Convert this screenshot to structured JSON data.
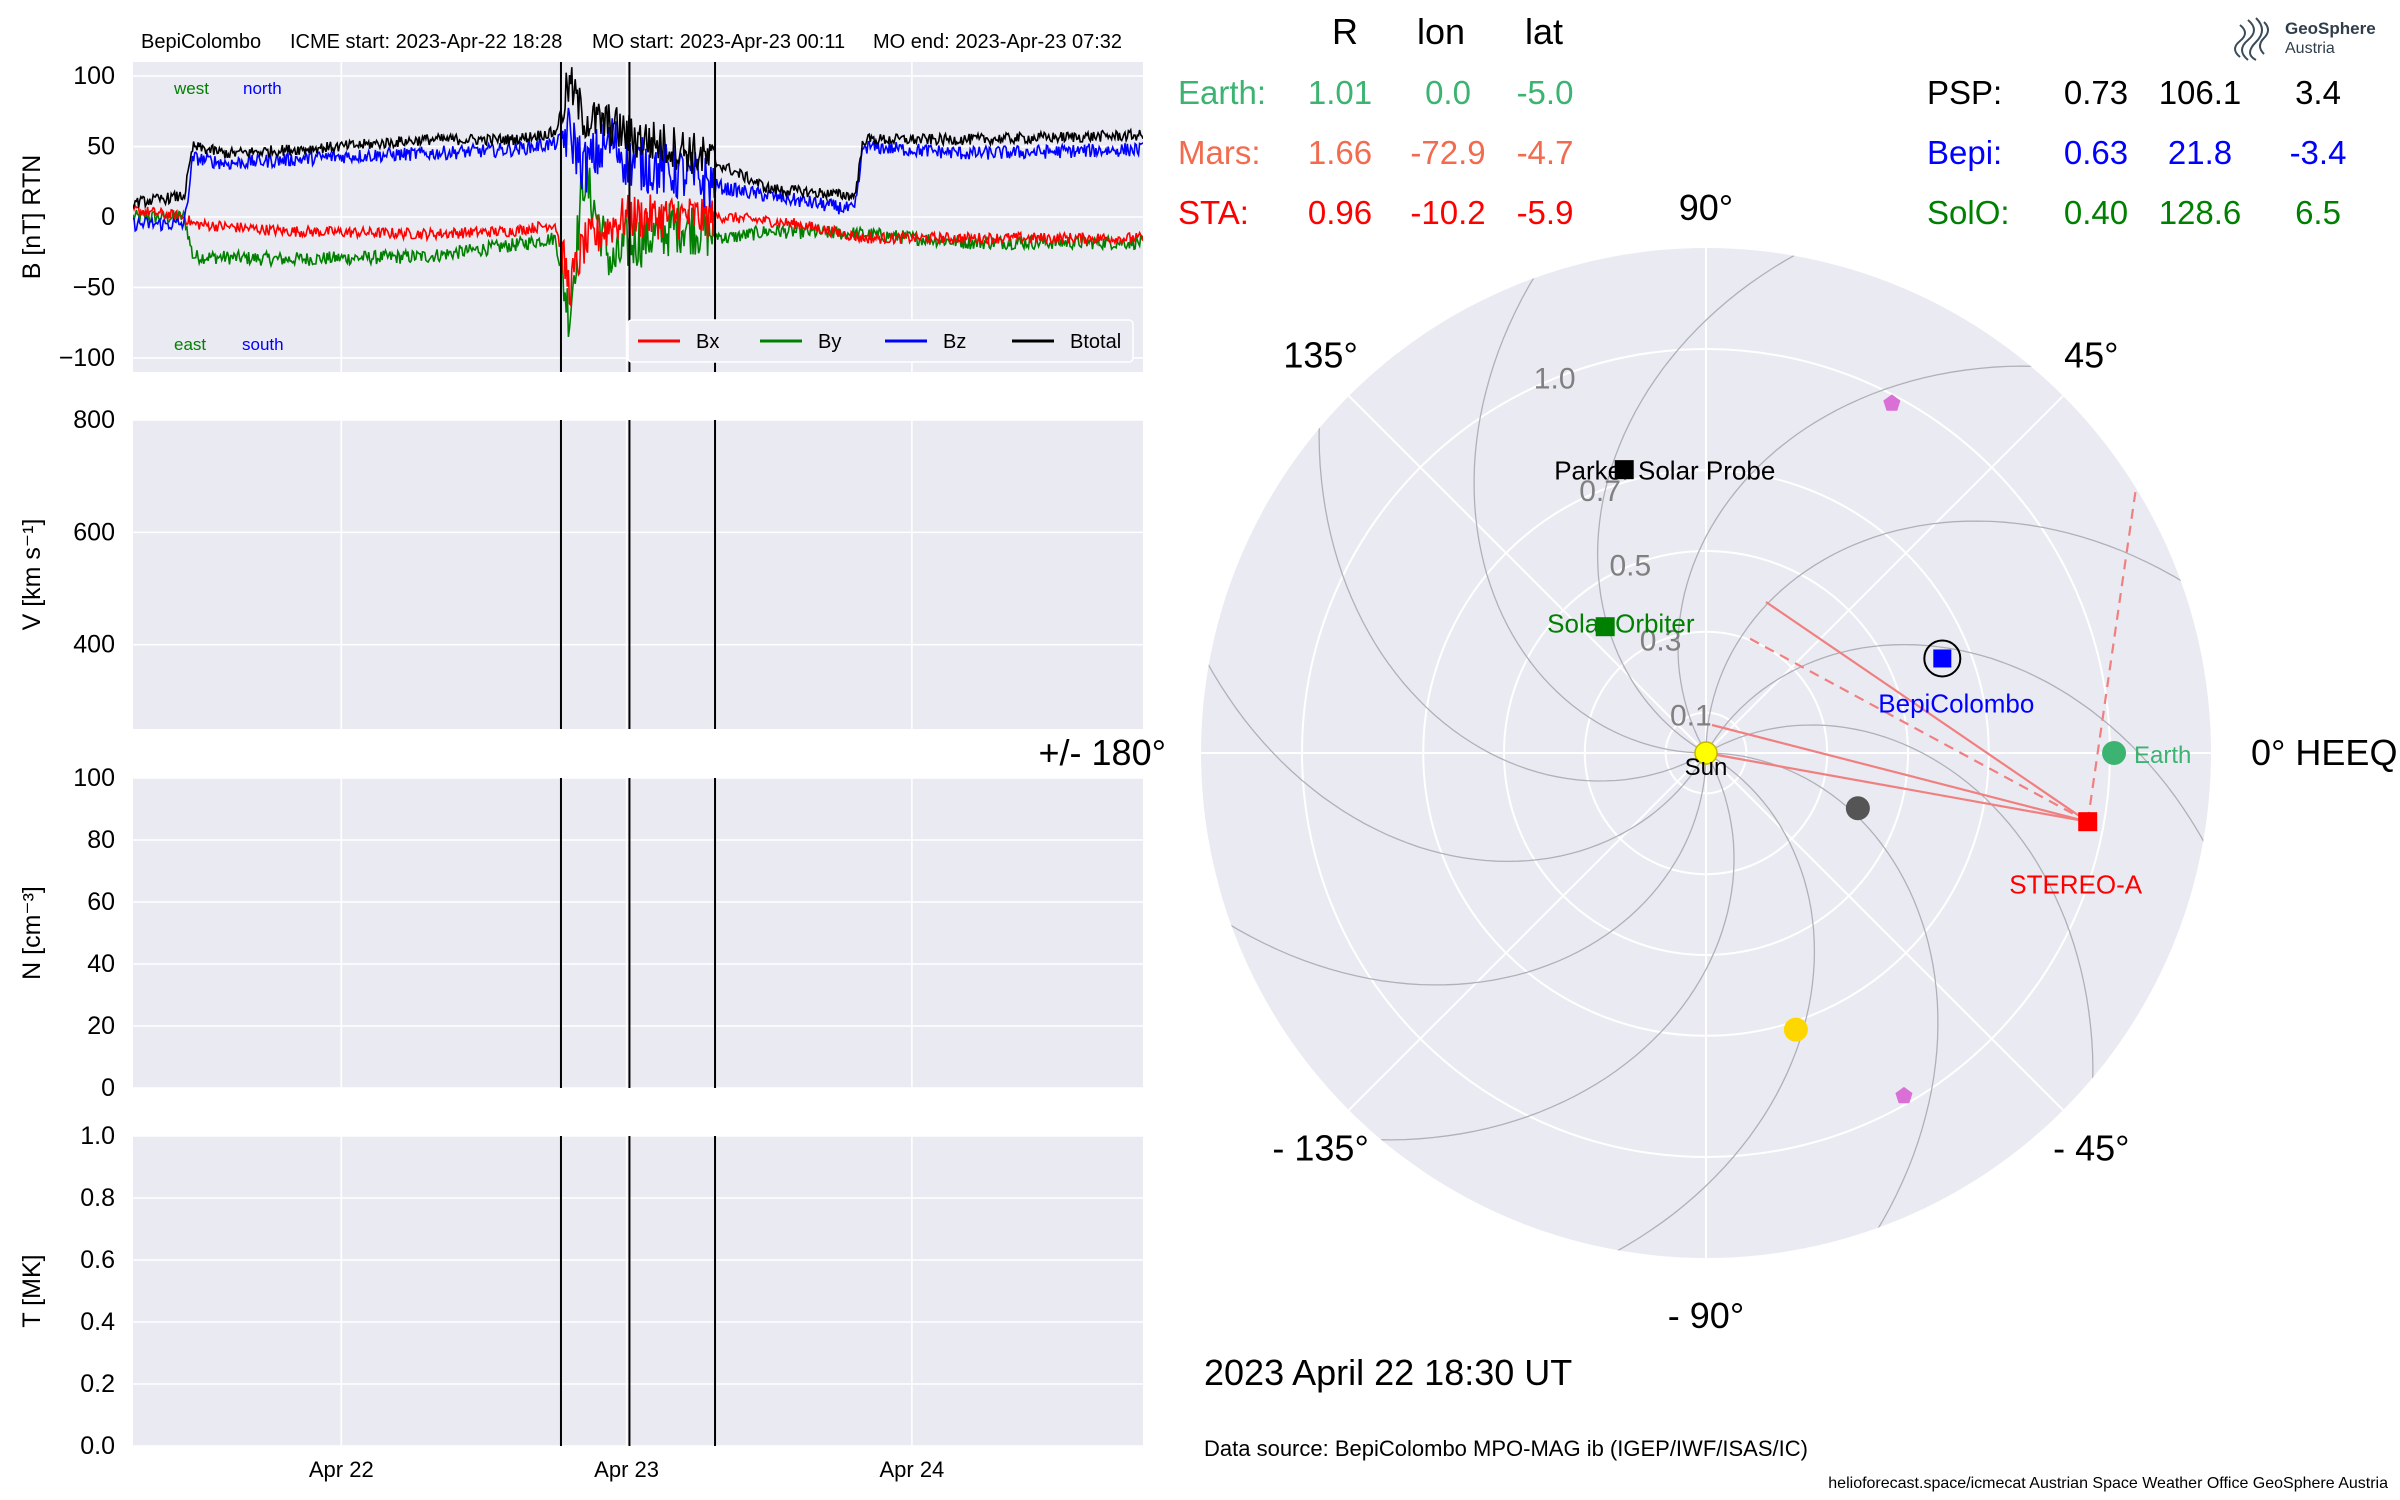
{
  "header": {
    "spacecraft": "BepiColombo",
    "icme_start": "ICME start: 2023-Apr-22 18:28",
    "mo_start": "MO start: 2023-Apr-23 00:11",
    "mo_end": "MO end: 2023-Apr-23 07:32"
  },
  "logo": {
    "line1": "GeoSphere",
    "line2": "Austria"
  },
  "positions_table": {
    "headers": [
      "R",
      "lon",
      "lat"
    ],
    "left_rows": [
      {
        "name": "Earth:",
        "R": "1.01",
        "lon": "0.0",
        "lat": "-5.0",
        "color": "#3cb371"
      },
      {
        "name": "Mars:",
        "R": "1.66",
        "lon": "-72.9",
        "lat": "-4.7",
        "color": "#f26b4f"
      },
      {
        "name": "STA:",
        "R": "0.96",
        "lon": "-10.2",
        "lat": "-5.9",
        "color": "#ff0000"
      }
    ],
    "right_rows": [
      {
        "name": "PSP:",
        "R": "0.73",
        "lon": "106.1",
        "lat": "3.4",
        "color": "#000000"
      },
      {
        "name": "Bepi:",
        "R": "0.63",
        "lon": "21.8",
        "lat": "-3.4",
        "color": "#0000ff"
      },
      {
        "name": "SolO:",
        "R": "0.40",
        "lon": "128.6",
        "lat": "6.5",
        "color": "#008000"
      }
    ]
  },
  "date_label": "2023 April 22  18:30 UT",
  "data_source": "Data source: BepiColombo MPO-MAG ib (IGEP/IWF/ISAS/IC)",
  "footer": "helioforecast.space/icmecat   Austrian Space Weather Office   GeoSphere Austria",
  "colors": {
    "axes_bg": "#eaeaf2",
    "grid": "#ffffff",
    "bx": "#ff0000",
    "by": "#008000",
    "bz": "#0000ff",
    "btotal": "#000000"
  },
  "chart_data": [
    {
      "type": "line",
      "panel": "magnetic field",
      "ylabel": "B [nT] RTN",
      "ylim": [
        -110,
        110
      ],
      "yticks": [
        "100",
        "50",
        "0",
        "−50",
        "−100"
      ],
      "ytick_values": [
        100,
        50,
        0,
        -50,
        -100
      ],
      "xlim_days": [
        21.27,
        24.81
      ],
      "xticks": [
        "Apr 22",
        "Apr 23",
        "Apr 24"
      ],
      "xtick_days": [
        22,
        23,
        24
      ],
      "event_lines_days": [
        22.77,
        23.01,
        23.31
      ],
      "annotations": {
        "west": "west",
        "north": "north",
        "east": "east",
        "south": "south"
      },
      "legend": [
        "Bx",
        "By",
        "Bz",
        "Btotal"
      ],
      "legend_location": "lower right",
      "series_keypoints": {
        "Btotal": [
          [
            21.27,
            10
          ],
          [
            21.45,
            15
          ],
          [
            21.48,
            50
          ],
          [
            21.6,
            45
          ],
          [
            22.0,
            50
          ],
          [
            22.3,
            55
          ],
          [
            22.6,
            55
          ],
          [
            22.75,
            60
          ],
          [
            22.8,
            95
          ],
          [
            22.85,
            70
          ],
          [
            22.95,
            65
          ],
          [
            23.0,
            58
          ],
          [
            23.2,
            48
          ],
          [
            23.35,
            35
          ],
          [
            23.5,
            20
          ],
          [
            23.8,
            15
          ],
          [
            23.83,
            55
          ],
          [
            24.2,
            55
          ],
          [
            24.81,
            58
          ]
        ],
        "Bz": [
          [
            21.27,
            -5
          ],
          [
            21.45,
            -5
          ],
          [
            21.48,
            42
          ],
          [
            21.6,
            38
          ],
          [
            22.0,
            43
          ],
          [
            22.3,
            45
          ],
          [
            22.6,
            48
          ],
          [
            22.75,
            52
          ],
          [
            22.8,
            60
          ],
          [
            22.85,
            35
          ],
          [
            22.95,
            55
          ],
          [
            23.0,
            40
          ],
          [
            23.2,
            30
          ],
          [
            23.35,
            20
          ],
          [
            23.5,
            15
          ],
          [
            23.8,
            5
          ],
          [
            23.83,
            50
          ],
          [
            24.2,
            45
          ],
          [
            24.81,
            48
          ]
        ],
        "Bx": [
          [
            21.27,
            5
          ],
          [
            21.45,
            0
          ],
          [
            21.48,
            -5
          ],
          [
            21.8,
            -10
          ],
          [
            22.3,
            -12
          ],
          [
            22.6,
            -10
          ],
          [
            22.75,
            -5
          ],
          [
            22.8,
            -50
          ],
          [
            22.85,
            -20
          ],
          [
            22.95,
            -5
          ],
          [
            23.0,
            0
          ],
          [
            23.2,
            0
          ],
          [
            23.35,
            0
          ],
          [
            23.6,
            -5
          ],
          [
            23.83,
            -15
          ],
          [
            24.2,
            -15
          ],
          [
            24.81,
            -15
          ]
        ],
        "By": [
          [
            21.27,
            0
          ],
          [
            21.45,
            0
          ],
          [
            21.48,
            -28
          ],
          [
            21.8,
            -30
          ],
          [
            22.3,
            -28
          ],
          [
            22.6,
            -20
          ],
          [
            22.75,
            -15
          ],
          [
            22.8,
            -70
          ],
          [
            22.85,
            30
          ],
          [
            22.95,
            -35
          ],
          [
            23.0,
            -20
          ],
          [
            23.2,
            -5
          ],
          [
            23.35,
            -15
          ],
          [
            23.5,
            -10
          ],
          [
            23.83,
            -12
          ],
          [
            24.2,
            -18
          ],
          [
            24.81,
            -18
          ]
        ]
      }
    },
    {
      "type": "line",
      "panel": "speed",
      "ylabel": "V [km s⁻¹]",
      "ylim": [
        250,
        800
      ],
      "yticks": [
        "800",
        "600",
        "400"
      ],
      "ytick_values": [
        800,
        600,
        400
      ],
      "xticks": [
        "Apr 22",
        "Apr 23",
        "Apr 24"
      ],
      "xtick_days": [
        22,
        23,
        24
      ],
      "event_lines_days": [
        22.77,
        23.01,
        23.31
      ]
    },
    {
      "type": "line",
      "panel": "density",
      "ylabel": "N [cm⁻³]",
      "ylim": [
        0,
        100
      ],
      "yticks": [
        "100",
        "80",
        "60",
        "40",
        "20",
        "0"
      ],
      "ytick_values": [
        100,
        80,
        60,
        40,
        20,
        0
      ],
      "xticks": [
        "Apr 22",
        "Apr 23",
        "Apr 24"
      ],
      "xtick_days": [
        22,
        23,
        24
      ],
      "event_lines_days": [
        22.77,
        23.01,
        23.31
      ]
    },
    {
      "type": "line",
      "panel": "temperature",
      "ylabel": "T [MK]",
      "ylim": [
        0,
        1
      ],
      "yticks": [
        "1.0",
        "0.8",
        "0.6",
        "0.4",
        "0.2",
        "0.0"
      ],
      "ytick_values": [
        1.0,
        0.8,
        0.6,
        0.4,
        0.2,
        0.0
      ],
      "xticks": [
        "Apr 22",
        "Apr 23",
        "Apr 24"
      ],
      "xtick_days": [
        22,
        23,
        24
      ],
      "event_lines_days": [
        22.77,
        23.01,
        23.31
      ]
    },
    {
      "type": "scatter",
      "panel": "polar position plot",
      "projection": "polar",
      "rmax_au": 1.25,
      "radial_tick_labels": [
        "0.1",
        "0.3",
        "0.5",
        "0.7",
        "1.0"
      ],
      "radial_tick_values": [
        0.1,
        0.3,
        0.5,
        0.7,
        1.0
      ],
      "angle_labels": {
        "east0": "0° HEEQ",
        "ne": "45°",
        "north": "90°",
        "nw": "135°",
        "west": "+/- 180°",
        "sw": "- 135°",
        "south": "- 90°",
        "se": "- 45°"
      },
      "bodies": [
        {
          "name": "Sun",
          "r": 0.0,
          "lon": 0.0,
          "color": "#ffff00",
          "marker": "circle"
        },
        {
          "name": "Earth",
          "r": 1.01,
          "lon": 0.0,
          "color": "#3cb371",
          "marker": "circle"
        },
        {
          "name": "STEREO-A",
          "r": 0.96,
          "lon": -10.2,
          "color": "#ff0000",
          "marker": "square"
        },
        {
          "name": "BepiColombo",
          "r": 0.63,
          "lon": 21.8,
          "color": "#0000ff",
          "marker": "square"
        },
        {
          "name": "Parker Solar Probe",
          "r": 0.73,
          "lon": 106.1,
          "color": "#000000",
          "marker": "square"
        },
        {
          "name": "Solar Orbiter",
          "r": 0.4,
          "lon": 128.6,
          "color": "#008000",
          "marker": "square"
        },
        {
          "name": "",
          "r": 0.4,
          "lon": -20.0,
          "color": "#555555",
          "marker": "circle"
        },
        {
          "name": "",
          "r": 0.72,
          "lon": -72.0,
          "color": "#ffd700",
          "marker": "circle"
        },
        {
          "name": "",
          "r": 0.98,
          "lon": 62.0,
          "color": "#da70d6",
          "marker": "pentagon"
        },
        {
          "name": "",
          "r": 0.98,
          "lon": -60.0,
          "color": "#da70d6",
          "marker": "pentagon"
        }
      ]
    }
  ]
}
